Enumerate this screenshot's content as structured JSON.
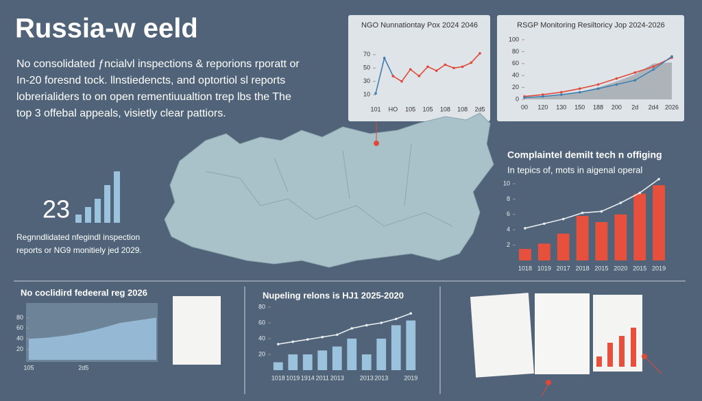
{
  "header": {
    "title": "Russia-w eeld",
    "paragraph": [
      "No consolidated ƒncialvl inspections & reporions rporatt or",
      "In-20 foresnd tock. llnstiedencts, and optortiol sl reports",
      "lobrerialiders to on open rementiuualtion trep lbs the The",
      "top 3 offebal appeals, visietly clear pattiors."
    ]
  },
  "stat": {
    "number": "23",
    "caption": [
      "Regnndlidated nfegindl inspection",
      "reports or NG9 monitiely jed 2029."
    ]
  },
  "chart_data": [
    {
      "type": "line",
      "title": "NGO Nunnationtay Pox 2024 2046",
      "categories": [
        "101",
        null,
        "HO",
        null,
        "105",
        null,
        "105",
        null,
        "108",
        null,
        "108",
        null,
        "2d5"
      ],
      "series": [
        {
          "color": "#3f7fb0",
          "values": [
            12,
            65,
            38,
            null,
            null,
            null,
            null,
            null,
            null,
            null,
            null,
            null,
            null
          ]
        },
        {
          "color": "#e0493a",
          "values": [
            null,
            null,
            38,
            30,
            48,
            38,
            52,
            46,
            55,
            50,
            52,
            58,
            72
          ]
        }
      ],
      "ylim": [
        0,
        80
      ],
      "yticks": [
        10,
        30,
        50,
        70
      ]
    },
    {
      "type": "line",
      "title": "RSGP Monitoring Resiltoricy Jop 2024-2026",
      "categories": [
        "00",
        "120",
        "130",
        "150",
        "188",
        "200",
        "2d",
        "2d4",
        "2026"
      ],
      "series": [
        {
          "color": "#a4abb0",
          "area": true,
          "values": [
            2,
            4,
            7,
            12,
            20,
            30,
            42,
            60,
            62
          ]
        },
        {
          "color": "#e0493a",
          "values": [
            5,
            8,
            12,
            18,
            25,
            35,
            45,
            55,
            70
          ]
        },
        {
          "color": "#3f7fb0",
          "values": [
            3,
            5,
            8,
            12,
            18,
            25,
            32,
            50,
            72
          ]
        }
      ],
      "ylim": [
        0,
        100
      ],
      "yticks": [
        0,
        20,
        40,
        60,
        80,
        100
      ]
    },
    {
      "type": "bar",
      "title": "Complaintel demilt tech n offiging",
      "subtitle": "In tepics of, mots in aigenal operal",
      "categories": [
        "1018",
        "1019",
        "2017",
        "2018",
        "2015",
        "2020",
        "2015",
        "2019"
      ],
      "series": [
        {
          "color": "#e8503e",
          "values": [
            1.5,
            2.2,
            3.5,
            5.8,
            5,
            6,
            8.7,
            9.8
          ]
        },
        {
          "color": "#e8edf0",
          "line": true,
          "values": [
            4.2,
            4.8,
            5.4,
            6.2,
            6.4,
            7.5,
            8.8,
            10.6
          ]
        }
      ],
      "ylim": [
        0,
        10
      ],
      "yticks": [
        2,
        4,
        6,
        8,
        10
      ]
    },
    {
      "type": "line",
      "title": "No coclidird fedeeral reg 2026",
      "categories": [
        "105",
        null,
        null,
        "2d5",
        null,
        null,
        null,
        null
      ],
      "series": [
        {
          "color": "#9cc3de",
          "area": true,
          "values": [
            40,
            42,
            46,
            52,
            60,
            70,
            75,
            80
          ]
        }
      ],
      "ylim": [
        0,
        100
      ],
      "yticks": [
        20,
        40,
        60,
        80
      ]
    },
    {
      "type": "bar",
      "title": "Nupeling relons is HJ1 2025-2020",
      "categories": [
        "1018",
        "1019",
        "1914",
        "2011",
        "2013",
        null,
        "2013",
        "2013",
        null,
        "2019"
      ],
      "series": [
        {
          "color": "#9cc3de",
          "values": [
            10,
            20,
            20,
            25,
            30,
            40,
            20,
            40,
            57,
            63
          ]
        },
        {
          "color": "#e8edf0",
          "line": true,
          "values": [
            33,
            36,
            39,
            42,
            45,
            53,
            57,
            60,
            65,
            72
          ]
        }
      ],
      "ylim": [
        0,
        80
      ],
      "yticks": [
        20,
        40,
        60,
        80
      ]
    }
  ]
}
